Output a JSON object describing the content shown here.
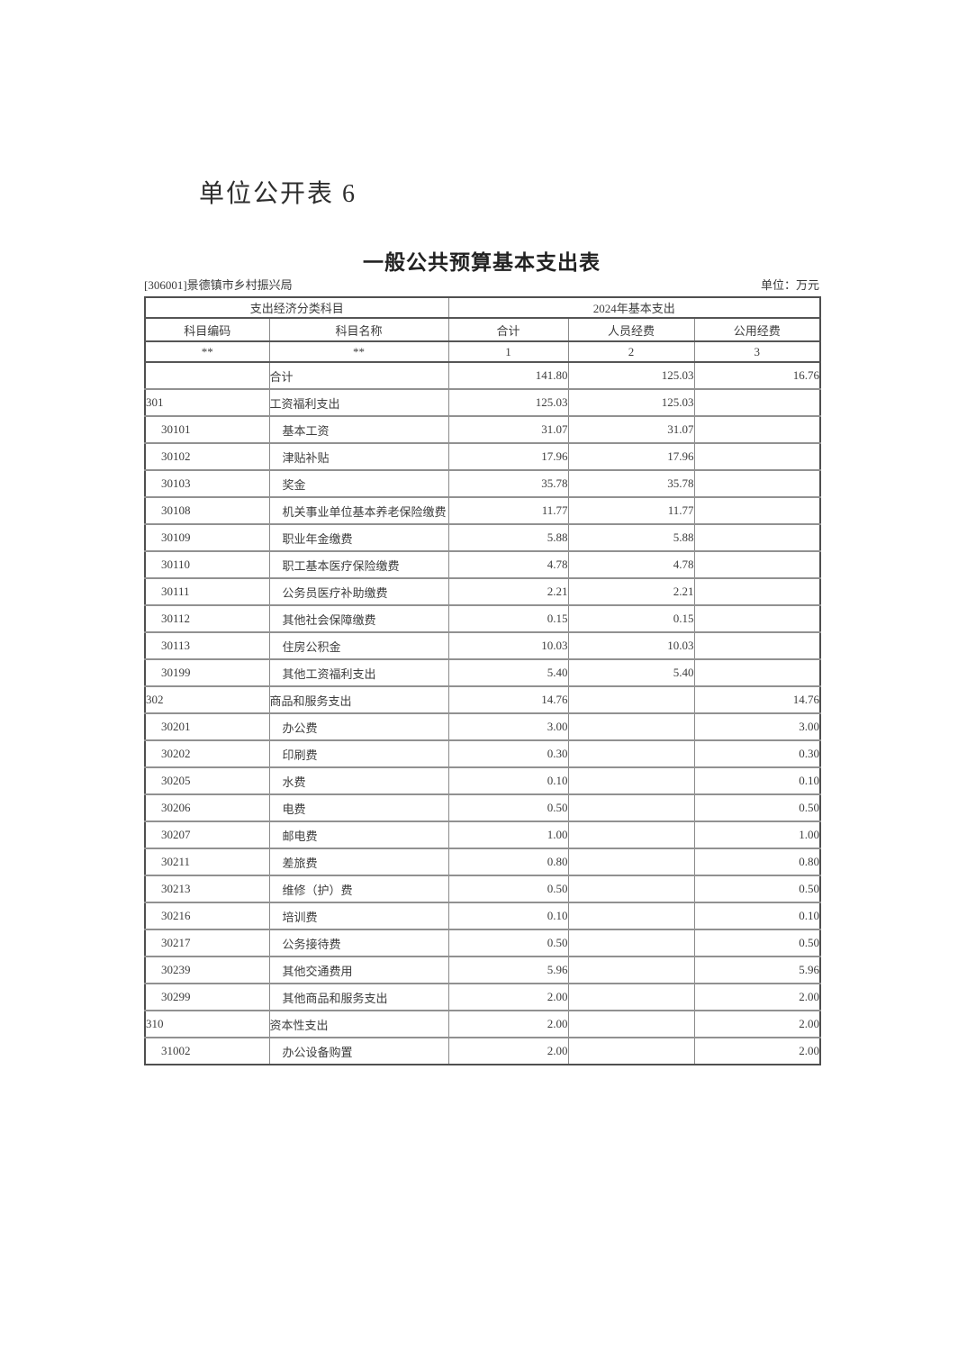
{
  "page": {
    "doc_label": "单位公开表 6",
    "table_title": "一般公共预算基本支出表",
    "org": "[306001]景德镇市乡村振兴局",
    "unit": "单位：万元"
  },
  "table": {
    "group_headers": {
      "subject": "支出经济分类科目",
      "year": "2024年基本支出"
    },
    "columns": [
      "科目编码",
      "科目名称",
      "合计",
      "人员经费",
      "公用经费"
    ],
    "sub_headers": [
      "**",
      "**",
      "1",
      "2",
      "3"
    ],
    "rows": [
      {
        "code": "",
        "name": "合计",
        "total": "141.80",
        "personnel": "125.03",
        "public": "16.76",
        "level": 0
      },
      {
        "code": "301",
        "name": "工资福利支出",
        "total": "125.03",
        "personnel": "125.03",
        "public": "",
        "level": 0
      },
      {
        "code": "30101",
        "name": "基本工资",
        "total": "31.07",
        "personnel": "31.07",
        "public": "",
        "level": 1
      },
      {
        "code": "30102",
        "name": "津贴补贴",
        "total": "17.96",
        "personnel": "17.96",
        "public": "",
        "level": 1
      },
      {
        "code": "30103",
        "name": "奖金",
        "total": "35.78",
        "personnel": "35.78",
        "public": "",
        "level": 1
      },
      {
        "code": "30108",
        "name": "机关事业单位基本养老保险缴费",
        "total": "11.77",
        "personnel": "11.77",
        "public": "",
        "level": 1
      },
      {
        "code": "30109",
        "name": "职业年金缴费",
        "total": "5.88",
        "personnel": "5.88",
        "public": "",
        "level": 1
      },
      {
        "code": "30110",
        "name": "职工基本医疗保险缴费",
        "total": "4.78",
        "personnel": "4.78",
        "public": "",
        "level": 1
      },
      {
        "code": "30111",
        "name": "公务员医疗补助缴费",
        "total": "2.21",
        "personnel": "2.21",
        "public": "",
        "level": 1
      },
      {
        "code": "30112",
        "name": "其他社会保障缴费",
        "total": "0.15",
        "personnel": "0.15",
        "public": "",
        "level": 1
      },
      {
        "code": "30113",
        "name": "住房公积金",
        "total": "10.03",
        "personnel": "10.03",
        "public": "",
        "level": 1
      },
      {
        "code": "30199",
        "name": "其他工资福利支出",
        "total": "5.40",
        "personnel": "5.40",
        "public": "",
        "level": 1
      },
      {
        "code": "302",
        "name": "商品和服务支出",
        "total": "14.76",
        "personnel": "",
        "public": "14.76",
        "level": 0
      },
      {
        "code": "30201",
        "name": "办公费",
        "total": "3.00",
        "personnel": "",
        "public": "3.00",
        "level": 1
      },
      {
        "code": "30202",
        "name": "印刷费",
        "total": "0.30",
        "personnel": "",
        "public": "0.30",
        "level": 1
      },
      {
        "code": "30205",
        "name": "水费",
        "total": "0.10",
        "personnel": "",
        "public": "0.10",
        "level": 1
      },
      {
        "code": "30206",
        "name": "电费",
        "total": "0.50",
        "personnel": "",
        "public": "0.50",
        "level": 1
      },
      {
        "code": "30207",
        "name": "邮电费",
        "total": "1.00",
        "personnel": "",
        "public": "1.00",
        "level": 1
      },
      {
        "code": "30211",
        "name": "差旅费",
        "total": "0.80",
        "personnel": "",
        "public": "0.80",
        "level": 1
      },
      {
        "code": "30213",
        "name": "维修（护）费",
        "total": "0.50",
        "personnel": "",
        "public": "0.50",
        "level": 1
      },
      {
        "code": "30216",
        "name": "培训费",
        "total": "0.10",
        "personnel": "",
        "public": "0.10",
        "level": 1
      },
      {
        "code": "30217",
        "name": "公务接待费",
        "total": "0.50",
        "personnel": "",
        "public": "0.50",
        "level": 1
      },
      {
        "code": "30239",
        "name": "其他交通费用",
        "total": "5.96",
        "personnel": "",
        "public": "5.96",
        "level": 1
      },
      {
        "code": "30299",
        "name": "其他商品和服务支出",
        "total": "2.00",
        "personnel": "",
        "public": "2.00",
        "level": 1
      },
      {
        "code": "310",
        "name": "资本性支出",
        "total": "2.00",
        "personnel": "",
        "public": "2.00",
        "level": 0
      },
      {
        "code": "31002",
        "name": "办公设备购置",
        "total": "2.00",
        "personnel": "",
        "public": "2.00",
        "level": 1
      }
    ]
  }
}
